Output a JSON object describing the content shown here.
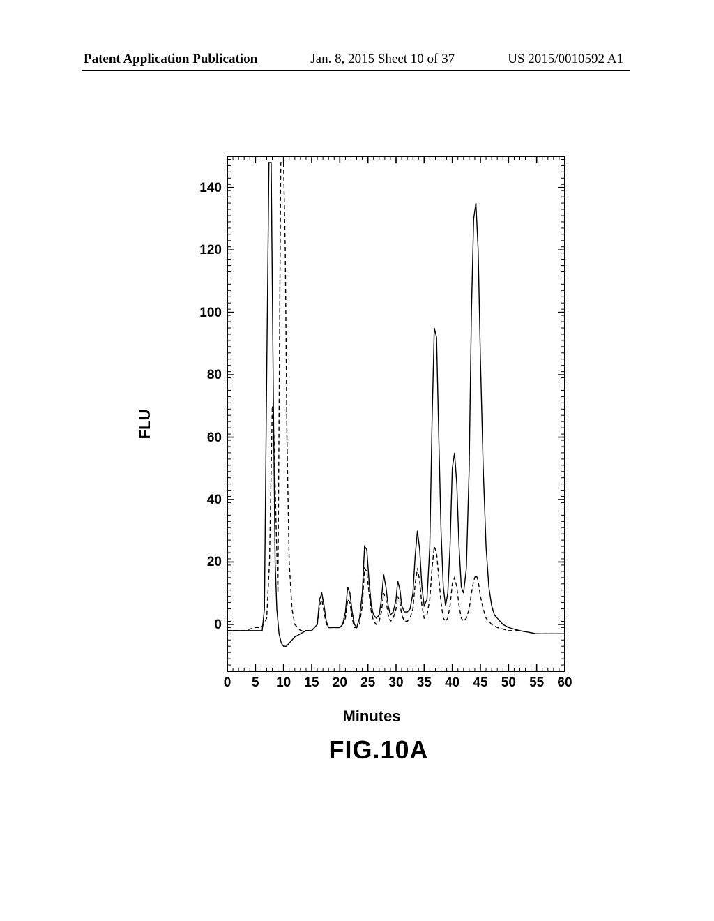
{
  "header": {
    "left": "Patent Application Publication",
    "center": "Jan. 8, 2015  Sheet 10 of 37",
    "right": "US 2015/0010592 A1"
  },
  "chart": {
    "type": "line",
    "x_label": "Minutes",
    "y_label": "FLU",
    "figure_label": "FIG.10A",
    "xlim": [
      0,
      60
    ],
    "ylim": [
      -15,
      150
    ],
    "x_ticks": [
      0,
      5,
      10,
      15,
      20,
      25,
      30,
      35,
      40,
      45,
      50,
      55,
      60
    ],
    "y_ticks": [
      0,
      20,
      40,
      60,
      80,
      100,
      120,
      140
    ],
    "x_minor_step": 1,
    "y_minor_step": 2,
    "background_color": "#ffffff",
    "axis_color": "#000000",
    "label_fontsize": 22,
    "tick_fontsize": 19,
    "caption_fontsize": 36,
    "line_width": 1.4,
    "series": [
      {
        "name": "trace-solid",
        "style": "solid",
        "color": "#000000",
        "data": [
          [
            0,
            -2
          ],
          [
            3,
            -2
          ],
          [
            5,
            -2
          ],
          [
            6.2,
            -2
          ],
          [
            6.6,
            5
          ],
          [
            7,
            80
          ],
          [
            7.4,
            148
          ],
          [
            7.8,
            148
          ],
          [
            8.2,
            70
          ],
          [
            8.5,
            20
          ],
          [
            8.8,
            5
          ],
          [
            9.2,
            -3
          ],
          [
            9.6,
            -6
          ],
          [
            10,
            -7
          ],
          [
            10.5,
            -7
          ],
          [
            11,
            -6
          ],
          [
            12,
            -4
          ],
          [
            13,
            -3
          ],
          [
            14,
            -2
          ],
          [
            15,
            -2
          ],
          [
            15.5,
            -1
          ],
          [
            16,
            0
          ],
          [
            16.4,
            8
          ],
          [
            16.8,
            10
          ],
          [
            17.2,
            6
          ],
          [
            17.6,
            1
          ],
          [
            18,
            -1
          ],
          [
            19,
            -1
          ],
          [
            20,
            -1
          ],
          [
            20.5,
            0
          ],
          [
            21,
            4
          ],
          [
            21.4,
            12
          ],
          [
            21.8,
            10
          ],
          [
            22.2,
            4
          ],
          [
            22.6,
            0
          ],
          [
            23,
            -1
          ],
          [
            23.5,
            2
          ],
          [
            24,
            10
          ],
          [
            24.4,
            25
          ],
          [
            24.8,
            24
          ],
          [
            25.2,
            14
          ],
          [
            25.6,
            6
          ],
          [
            26,
            3
          ],
          [
            26.5,
            2
          ],
          [
            27,
            3
          ],
          [
            27.4,
            8
          ],
          [
            27.8,
            16
          ],
          [
            28.2,
            12
          ],
          [
            28.6,
            6
          ],
          [
            29,
            3
          ],
          [
            29.5,
            4
          ],
          [
            30,
            8
          ],
          [
            30.3,
            14
          ],
          [
            30.7,
            11
          ],
          [
            31,
            6
          ],
          [
            31.5,
            4
          ],
          [
            32,
            4
          ],
          [
            32.5,
            5
          ],
          [
            33,
            10
          ],
          [
            33.4,
            22
          ],
          [
            33.8,
            30
          ],
          [
            34.2,
            24
          ],
          [
            34.6,
            12
          ],
          [
            35,
            6
          ],
          [
            35.5,
            8
          ],
          [
            36,
            25
          ],
          [
            36.4,
            65
          ],
          [
            36.8,
            95
          ],
          [
            37.2,
            92
          ],
          [
            37.6,
            60
          ],
          [
            38,
            30
          ],
          [
            38.4,
            12
          ],
          [
            38.8,
            6
          ],
          [
            39.2,
            10
          ],
          [
            39.6,
            25
          ],
          [
            40,
            50
          ],
          [
            40.4,
            55
          ],
          [
            40.8,
            45
          ],
          [
            41.2,
            25
          ],
          [
            41.6,
            12
          ],
          [
            42,
            10
          ],
          [
            42.5,
            18
          ],
          [
            43,
            50
          ],
          [
            43.4,
            100
          ],
          [
            43.8,
            130
          ],
          [
            44.2,
            135
          ],
          [
            44.6,
            120
          ],
          [
            45,
            85
          ],
          [
            45.5,
            50
          ],
          [
            46,
            25
          ],
          [
            46.5,
            12
          ],
          [
            47,
            6
          ],
          [
            47.5,
            3
          ],
          [
            48,
            2
          ],
          [
            49,
            0
          ],
          [
            50,
            -1
          ],
          [
            52,
            -2
          ],
          [
            55,
            -3
          ],
          [
            58,
            -3
          ],
          [
            60,
            -3
          ]
        ]
      },
      {
        "name": "trace-dashed",
        "style": "dashed",
        "color": "#000000",
        "data": [
          [
            0,
            -2
          ],
          [
            3,
            -2
          ],
          [
            5,
            -1
          ],
          [
            6,
            -1
          ],
          [
            6.5,
            0
          ],
          [
            7,
            2
          ],
          [
            7.5,
            20
          ],
          [
            7.8,
            50
          ],
          [
            8,
            70
          ],
          [
            8.3,
            60
          ],
          [
            8.7,
            30
          ],
          [
            9,
            10
          ],
          [
            9.5,
            148
          ],
          [
            10,
            148
          ],
          [
            10.3,
            120
          ],
          [
            10.6,
            60
          ],
          [
            11,
            20
          ],
          [
            11.5,
            5
          ],
          [
            12,
            0
          ],
          [
            13,
            -2
          ],
          [
            14,
            -2
          ],
          [
            15,
            -2
          ],
          [
            15.5,
            -1
          ],
          [
            16,
            0
          ],
          [
            16.4,
            6
          ],
          [
            16.8,
            8
          ],
          [
            17.2,
            4
          ],
          [
            17.6,
            0
          ],
          [
            18,
            -1
          ],
          [
            19,
            -1
          ],
          [
            20,
            -1
          ],
          [
            20.5,
            0
          ],
          [
            21,
            2
          ],
          [
            21.4,
            8
          ],
          [
            21.8,
            7
          ],
          [
            22.2,
            2
          ],
          [
            22.6,
            -1
          ],
          [
            23,
            -1
          ],
          [
            23.5,
            0
          ],
          [
            24,
            6
          ],
          [
            24.4,
            18
          ],
          [
            24.8,
            17
          ],
          [
            25.2,
            10
          ],
          [
            25.6,
            4
          ],
          [
            26,
            1
          ],
          [
            26.5,
            0
          ],
          [
            27,
            1
          ],
          [
            27.4,
            4
          ],
          [
            27.8,
            10
          ],
          [
            28.2,
            8
          ],
          [
            28.6,
            3
          ],
          [
            29,
            1
          ],
          [
            29.5,
            2
          ],
          [
            30,
            5
          ],
          [
            30.3,
            9
          ],
          [
            30.7,
            7
          ],
          [
            31,
            3
          ],
          [
            31.5,
            1
          ],
          [
            32,
            1
          ],
          [
            32.5,
            2
          ],
          [
            33,
            5
          ],
          [
            33.4,
            13
          ],
          [
            33.8,
            18
          ],
          [
            34.2,
            14
          ],
          [
            34.6,
            6
          ],
          [
            35,
            2
          ],
          [
            35.5,
            3
          ],
          [
            36,
            8
          ],
          [
            36.4,
            18
          ],
          [
            36.8,
            25
          ],
          [
            37.2,
            23
          ],
          [
            37.6,
            15
          ],
          [
            38,
            7
          ],
          [
            38.4,
            2
          ],
          [
            38.8,
            1
          ],
          [
            39.2,
            2
          ],
          [
            39.6,
            6
          ],
          [
            40,
            13
          ],
          [
            40.4,
            15
          ],
          [
            40.8,
            12
          ],
          [
            41.2,
            6
          ],
          [
            41.6,
            2
          ],
          [
            42,
            1
          ],
          [
            42.5,
            2
          ],
          [
            43,
            5
          ],
          [
            43.4,
            10
          ],
          [
            43.8,
            14
          ],
          [
            44.2,
            16
          ],
          [
            44.6,
            14
          ],
          [
            45,
            9
          ],
          [
            45.5,
            5
          ],
          [
            46,
            2
          ],
          [
            46.5,
            1
          ],
          [
            47,
            0
          ],
          [
            48,
            -1
          ],
          [
            50,
            -2
          ],
          [
            52,
            -2
          ],
          [
            55,
            -3
          ],
          [
            58,
            -3
          ],
          [
            60,
            -3
          ]
        ]
      }
    ]
  }
}
